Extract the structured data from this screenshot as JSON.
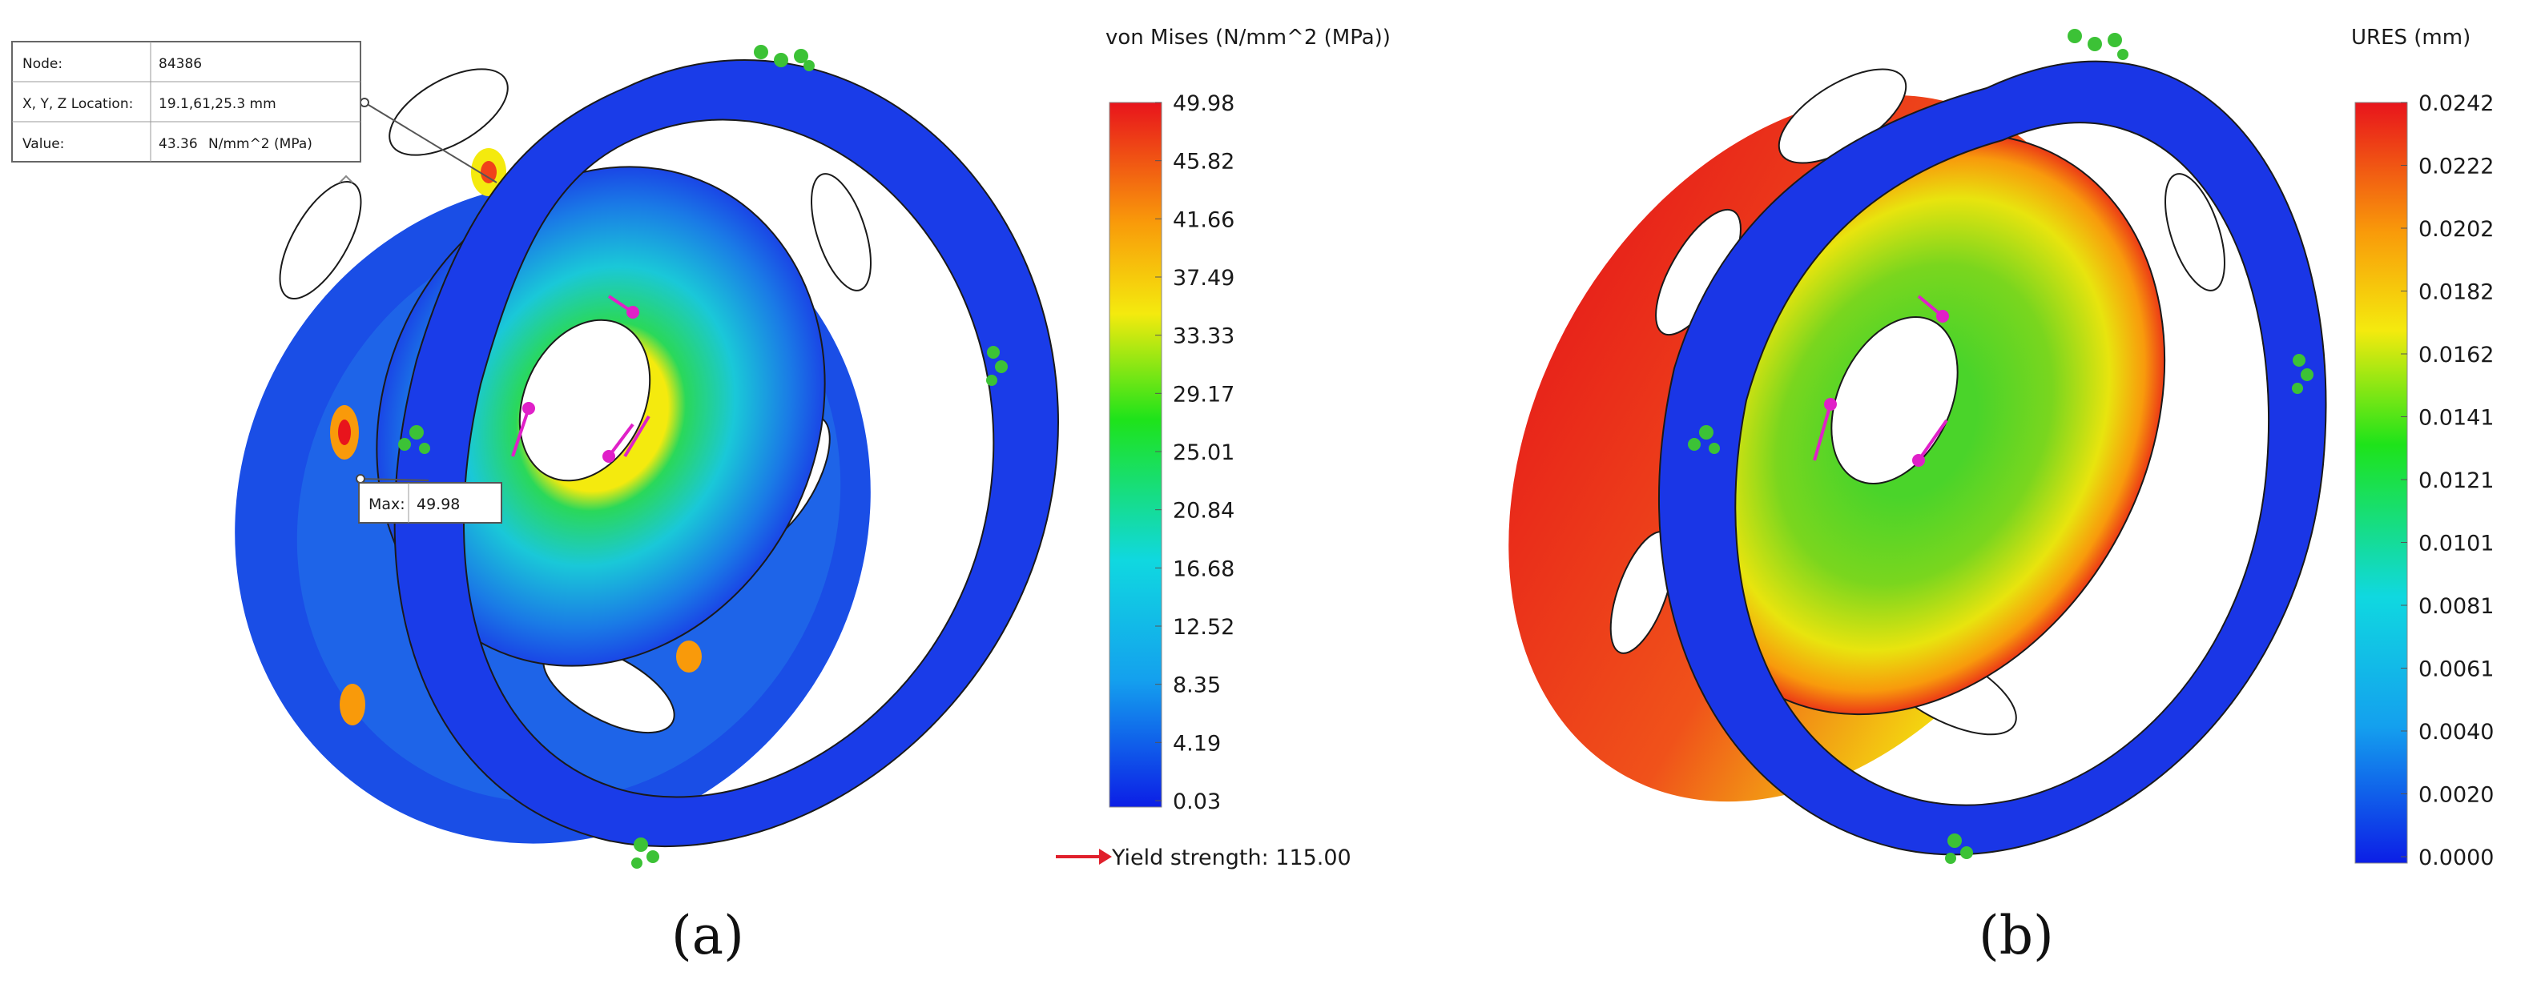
{
  "panel_a": {
    "label": "(a)",
    "legend_title": "von Mises (N/mm^2 (MPa))",
    "ticks": [
      "49.98",
      "45.82",
      "41.66",
      "37.49",
      "33.33",
      "29.17",
      "25.01",
      "20.84",
      "16.68",
      "12.52",
      "8.35",
      "4.19",
      "0.03"
    ],
    "yield_text": "Yield strength: 115.00",
    "probe": {
      "node_label": "Node:",
      "node_value": "84386",
      "loc_label": "X, Y, Z Location:",
      "loc_value": "19.1,61,25.3 mm",
      "value_label": "Value:",
      "value_value": "43.36",
      "value_unit": "N/mm^2 (MPa)"
    },
    "max_label": "Max:",
    "max_value": "49.98"
  },
  "panel_b": {
    "label": "(b)",
    "legend_title": "URES (mm)",
    "ticks": [
      "0.0242",
      "0.0222",
      "0.0202",
      "0.0182",
      "0.0162",
      "0.0141",
      "0.0121",
      "0.0101",
      "0.0081",
      "0.0061",
      "0.0040",
      "0.0020",
      "0.0000"
    ]
  },
  "colors": {
    "scale_top": "#e8141c",
    "scale_orange": "#f99a0a",
    "scale_yellow": "#f4ea0e",
    "scale_green": "#1ee31a",
    "scale_cyan": "#10d8e0",
    "scale_bottom": "#0c1ee6",
    "part_blue": "#1a36e6",
    "restraint": "#3cc236",
    "load_arrow": "#e020c8",
    "yield_arrow": "#e0202c"
  }
}
